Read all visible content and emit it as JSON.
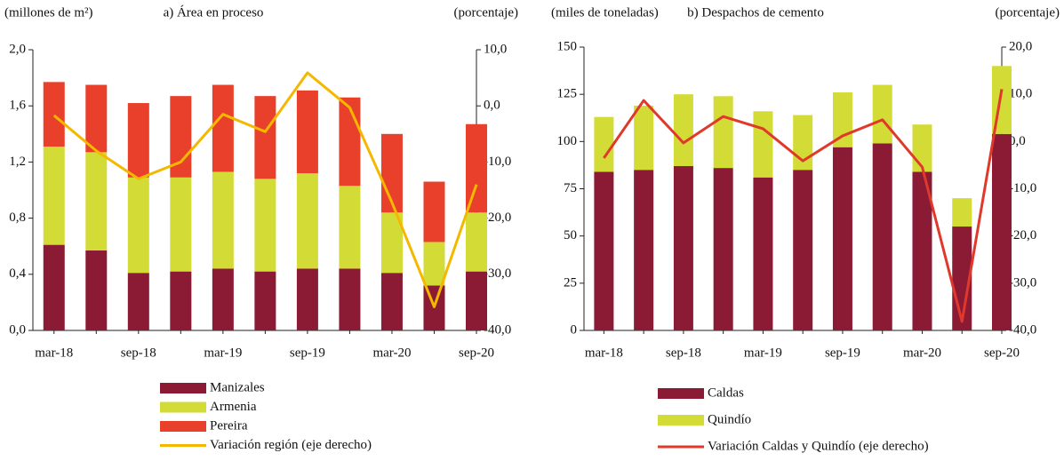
{
  "chart_data": [
    {
      "type": "bar",
      "stacked": true,
      "title": "a) Área en proceso",
      "y_label": "(millones  de m²)",
      "y2_label": "(porcentaje)",
      "categories": [
        "mar-18",
        null,
        "sep-18",
        null,
        "mar-19",
        null,
        "sep-19",
        null,
        "mar-20",
        null,
        "sep-20"
      ],
      "series": [
        {
          "name": "Manizales",
          "type": "bar",
          "color": "#8b1a35",
          "values": [
            0.61,
            0.57,
            0.41,
            0.42,
            0.44,
            0.42,
            0.44,
            0.44,
            0.41,
            0.32,
            0.42
          ]
        },
        {
          "name": "Armenia",
          "type": "bar",
          "color": "#d3db37",
          "values": [
            0.7,
            0.7,
            0.68,
            0.67,
            0.69,
            0.66,
            0.68,
            0.59,
            0.43,
            0.31,
            0.42
          ]
        },
        {
          "name": "Pereira",
          "type": "bar",
          "color": "#e8402a",
          "values": [
            0.46,
            0.48,
            0.53,
            0.58,
            0.62,
            0.59,
            0.59,
            0.63,
            0.56,
            0.43,
            0.63
          ]
        },
        {
          "name": "Variación región (eje derecho)",
          "type": "line",
          "axis": "y2",
          "color": "#f5b800",
          "values": [
            -1.7,
            -8,
            -13,
            -10,
            -1.5,
            -4.6,
            5.9,
            -0.3,
            -17.2,
            -35.8,
            -14
          ]
        }
      ],
      "ylim": [
        0,
        2
      ],
      "yticks": [
        {
          "value": 0,
          "label": "0,0"
        },
        {
          "value": 0.4,
          "label": "0,4"
        },
        {
          "value": 0.8,
          "label": "0,8"
        },
        {
          "value": 1.2,
          "label": "1,2"
        },
        {
          "value": 1.6,
          "label": "1,6"
        },
        {
          "value": 2,
          "label": "2,0"
        }
      ],
      "y2lim": [
        -40,
        10
      ],
      "y2ticks": [
        {
          "value": -40,
          "label": "-40,0"
        },
        {
          "value": -30,
          "label": "-30,0"
        },
        {
          "value": -20,
          "label": "-20,0"
        },
        {
          "value": -10,
          "label": "-10,0"
        },
        {
          "value": 0,
          "label": "0,0"
        },
        {
          "value": 10,
          "label": "10,0"
        }
      ]
    },
    {
      "type": "bar",
      "stacked": true,
      "title": "b) Despachos de cemento",
      "y_label": "(miles de toneladas)",
      "y2_label": "(porcentaje)",
      "categories": [
        "mar-18",
        null,
        "sep-18",
        null,
        "mar-19",
        null,
        "sep-19",
        null,
        "mar-20",
        null,
        "sep-20"
      ],
      "series": [
        {
          "name": "Caldas",
          "type": "bar",
          "color": "#8b1a35",
          "values": [
            84,
            85,
            87,
            86,
            81,
            85,
            97,
            99,
            84,
            55,
            104
          ]
        },
        {
          "name": "Quindío",
          "type": "bar",
          "color": "#d3db37",
          "values": [
            29,
            34,
            38,
            38,
            35,
            29,
            29,
            31,
            25,
            15,
            36
          ]
        },
        {
          "name": "Variación Caldas y Quindío (eje derecho)",
          "type": "line",
          "axis": "y2",
          "color": "#e0392b",
          "values": [
            -3.5,
            8.7,
            -0.3,
            5.3,
            2.7,
            -4.1,
            1.2,
            4.6,
            -5.4,
            -38.1,
            11.1
          ]
        }
      ],
      "ylim": [
        0,
        150
      ],
      "yticks": [
        0,
        25,
        50,
        75,
        100,
        125,
        150
      ],
      "y2lim": [
        -40,
        20
      ],
      "y2ticks": [
        {
          "value": -40,
          "label": "-40,0"
        },
        {
          "value": -30,
          "label": "-30,0"
        },
        {
          "value": -20,
          "label": "-20,0"
        },
        {
          "value": -10,
          "label": "-10,0"
        },
        {
          "value": 0,
          "label": "0,0"
        },
        {
          "value": 10,
          "label": "10,0"
        },
        {
          "value": 20,
          "label": "20,0"
        }
      ]
    }
  ]
}
